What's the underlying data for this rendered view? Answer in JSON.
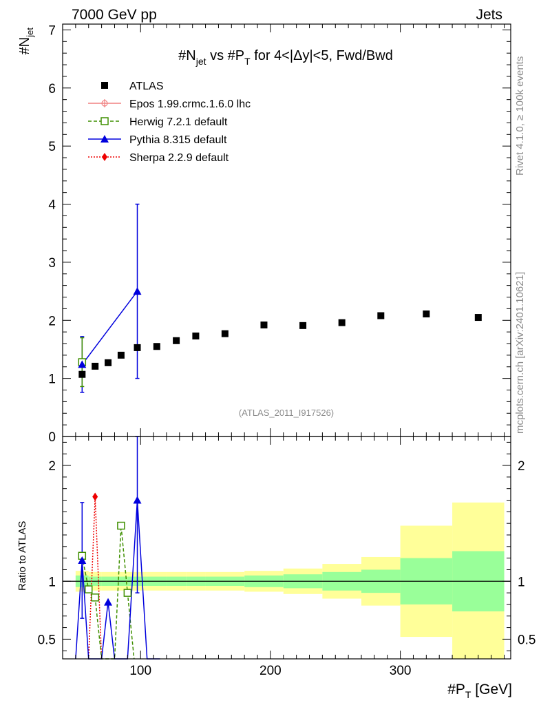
{
  "header": {
    "left": "7000 GeV pp",
    "right": "Jets"
  },
  "side_labels": {
    "rivet": "Rivet 4.1.0, ≥ 100k events",
    "mcplots": "mcplots.cern.ch [arXiv:2401.10621]"
  },
  "chart_data": {
    "type": "scatter",
    "title_main": "#N",
    "title_sub": "jet",
    "title_mid": " vs #P",
    "title_sub2": "T",
    "title_tail": " for 4<|Δy|<5, Fwd/Bwd",
    "analysis_tag": "(ATLAS_2011_I917526)",
    "ylabel_top_main": "#N",
    "ylabel_top_sub": "jet",
    "ylabel_bottom": "Ratio to ATLAS",
    "xlabel_main": "#P",
    "xlabel_sub": "T",
    "xlabel_tail": " [GeV]",
    "xlim": [
      40,
      385
    ],
    "ylim_top": [
      0,
      7.1
    ],
    "ylim_bottom": [
      0.33,
      2.25
    ],
    "x_ticks": [
      100,
      200,
      300
    ],
    "y_ticks_top": [
      0,
      1,
      2,
      3,
      4,
      5,
      6,
      7
    ],
    "y_ticks_bottom": [
      0.5,
      1,
      2
    ],
    "legend": [
      {
        "label": "ATLAS",
        "color": "#000000",
        "marker": "square",
        "line": "none"
      },
      {
        "label": "Epos 1.99.crmc.1.6.0 lhc",
        "color": "#f08080",
        "marker": "plus-circle",
        "line": "solid"
      },
      {
        "label": "Herwig 7.2.1 default",
        "color": "#3f8f00",
        "marker": "open-square",
        "line": "dashed"
      },
      {
        "label": "Pythia 8.315 default",
        "color": "#0000dd",
        "marker": "triangle",
        "line": "solid"
      },
      {
        "label": "Sherpa 2.2.9 default",
        "color": "#ee0000",
        "marker": "diamond",
        "line": "dotted"
      }
    ],
    "atlas": {
      "x": [
        55,
        65,
        75,
        85,
        97.5,
        112.5,
        127.5,
        142.5,
        165,
        195,
        225,
        255,
        285,
        320,
        360
      ],
      "y": [
        1.07,
        1.21,
        1.27,
        1.4,
        1.53,
        1.55,
        1.65,
        1.73,
        1.77,
        1.92,
        1.91,
        1.96,
        2.08,
        2.11,
        2.05
      ],
      "xlow": [
        50,
        60,
        70,
        80,
        90,
        105,
        120,
        135,
        150,
        180,
        210,
        240,
        270,
        300,
        340
      ],
      "xhigh": [
        60,
        70,
        80,
        90,
        105,
        120,
        135,
        150,
        180,
        210,
        240,
        270,
        300,
        340,
        380
      ],
      "band_stat": [
        0.05,
        0.04,
        0.04,
        0.04,
        0.04,
        0.04,
        0.04,
        0.04,
        0.04,
        0.05,
        0.06,
        0.08,
        0.1,
        0.2,
        0.26
      ],
      "band_tot": [
        0.09,
        0.08,
        0.08,
        0.08,
        0.08,
        0.08,
        0.08,
        0.08,
        0.08,
        0.09,
        0.11,
        0.15,
        0.21,
        0.48,
        0.68
      ]
    },
    "herwig": {
      "x": [
        55,
        85
      ],
      "y": [
        1.28,
        1.41
      ],
      "err": [
        0.42,
        0
      ]
    },
    "pythia": {
      "x": [
        55,
        97.5
      ],
      "y": [
        1.24,
        2.5
      ],
      "err": [
        0.48,
        1.5
      ]
    },
    "ratio": {
      "herwig": {
        "x": [
          55,
          60,
          65,
          70,
          75,
          80,
          85,
          90,
          95
        ],
        "y": [
          1.22,
          0.93,
          0.86,
          0.0,
          0.0,
          0.0,
          1.48,
          0.9,
          0.0
        ]
      },
      "pythia": {
        "x": [
          50,
          55,
          60,
          65,
          70,
          75,
          80,
          90,
          97.5,
          105,
          115
        ],
        "y": [
          0.0,
          1.18,
          0.0,
          0.0,
          0.0,
          0.82,
          0.0,
          0.0,
          1.7,
          0.0,
          0.0
        ]
      },
      "pythia_err": [
        0.5,
        0.8
      ],
      "sherpa": {
        "x": [
          60,
          65,
          70
        ],
        "y": [
          0.0,
          1.73,
          0.0
        ]
      }
    }
  }
}
